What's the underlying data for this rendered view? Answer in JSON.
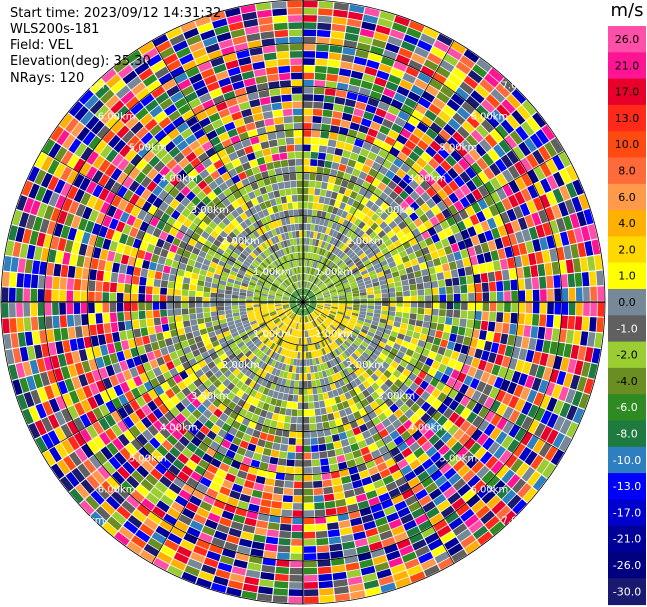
{
  "header": {
    "start_time": "Start time: 2023/09/12 14:31:32",
    "instrument": "WLS200s-181",
    "field": "Field: VEL",
    "elevation": "Elevation(deg): 35.30",
    "nrays": "NRays: 120"
  },
  "colorbar": {
    "unit": "m/s",
    "ticks": [
      "26.0",
      "21.0",
      "17.0",
      "13.0",
      "10.0",
      "8.0",
      "6.0",
      "4.0",
      "2.0",
      "1.0",
      "0.0",
      "-1.0",
      "-2.0",
      "-4.0",
      "-6.0",
      "-8.0",
      "-10.0",
      "-13.0",
      "-17.0",
      "-21.0",
      "-26.0",
      "-30.0"
    ],
    "colors": [
      "#ff4fa8",
      "#ff1493",
      "#e8002a",
      "#ff2a1a",
      "#ff4a12",
      "#ff6a3a",
      "#ff9a4a",
      "#ffb000",
      "#ffd800",
      "#ffff00",
      "#778899",
      "#606060",
      "#9acd32",
      "#6b8e23",
      "#2e8b22",
      "#1e7a3e",
      "#2e7fbf",
      "#0000ff",
      "#0000cd",
      "#000099",
      "#000080",
      "#191970"
    ]
  },
  "chart_data": {
    "type": "heatmap",
    "projection": "polar PPI",
    "field": "VEL",
    "n_rays": 120,
    "range_rings_km": [
      1.0,
      2.0,
      3.0,
      4.0,
      5.0,
      6.0,
      7.0
    ],
    "ring_labels": [
      "1.00km",
      "2.00km",
      "3.00km",
      "4.00km",
      "5.00km",
      "6.00km",
      "7.00km"
    ],
    "max_range_km": 7.0,
    "value_range": [
      -30.0,
      26.0
    ]
  }
}
